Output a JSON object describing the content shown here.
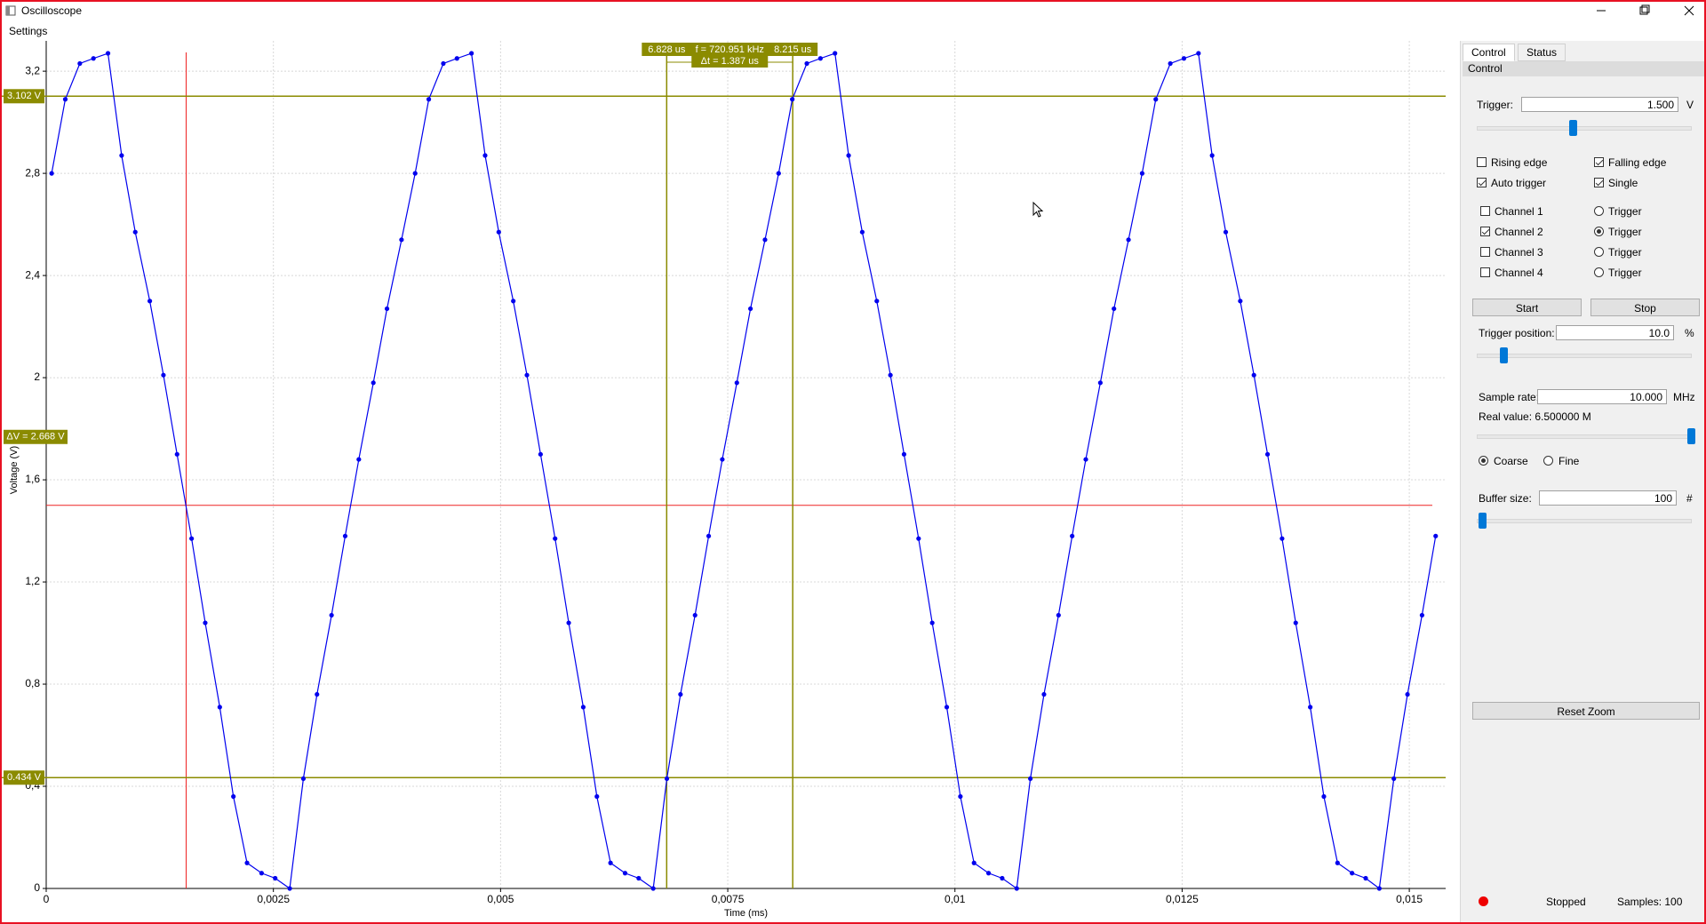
{
  "window": {
    "title": "Oscilloscope"
  },
  "menu": [
    "Settings"
  ],
  "chart_data": {
    "type": "line",
    "x_label": "Time (ms)",
    "y_label": "Voltage (V)",
    "x": [
      6e-05,
      0.00021,
      0.00037,
      0.00052,
      0.00068,
      0.00083,
      0.00098,
      0.00114,
      0.00129,
      0.00144,
      0.0016,
      0.00175,
      0.00191,
      0.00206,
      0.00221,
      0.00237,
      0.00252,
      0.00268,
      0.00283,
      0.00298,
      0.00314,
      0.00329,
      0.00344,
      0.0036,
      0.00375,
      0.00391,
      0.00406,
      0.00421,
      0.00437,
      0.00452,
      0.00468,
      0.00483,
      0.00498,
      0.00514,
      0.00529,
      0.00544,
      0.0056,
      0.00575,
      0.00591,
      0.00606,
      0.00621,
      0.00637,
      0.00652,
      0.00668,
      0.00683,
      0.00698,
      0.00714,
      0.00729,
      0.00744,
      0.0076,
      0.00775,
      0.00791,
      0.00806,
      0.00821,
      0.00837,
      0.00852,
      0.00868,
      0.00883,
      0.00898,
      0.00914,
      0.00929,
      0.00944,
      0.0096,
      0.00975,
      0.00991,
      0.01006,
      0.01021,
      0.01037,
      0.01052,
      0.01068,
      0.01083,
      0.01098,
      0.01114,
      0.01129,
      0.01144,
      0.0116,
      0.01175,
      0.01191,
      0.01206,
      0.01221,
      0.01237,
      0.01252,
      0.01268,
      0.01283,
      0.01298,
      0.01314,
      0.01329,
      0.01344,
      0.0136,
      0.01375,
      0.01391,
      0.01406,
      0.01421,
      0.01437,
      0.01452,
      0.01467,
      0.01483,
      0.01498,
      0.01514,
      0.01529
    ],
    "series": [
      {
        "color": "#0000ee",
        "values": [
          2.8,
          3.09,
          3.23,
          3.25,
          3.27,
          2.87,
          2.57,
          2.3,
          2.01,
          1.7,
          1.37,
          1.04,
          0.71,
          0.36,
          0.1,
          0.06,
          0.04,
          0.0,
          0.43,
          0.76,
          1.07,
          1.38,
          1.68,
          1.98,
          2.27,
          2.54,
          2.8,
          3.09,
          3.23,
          3.25,
          3.27,
          2.87,
          2.57,
          2.3,
          2.01,
          1.7,
          1.37,
          1.04,
          0.71,
          0.36,
          0.1,
          0.06,
          0.04,
          0.0,
          0.43,
          0.76,
          1.07,
          1.38,
          1.68,
          1.98,
          2.27,
          2.54,
          2.8,
          3.09,
          3.23,
          3.25,
          3.27,
          2.87,
          2.57,
          2.3,
          2.01,
          1.7,
          1.37,
          1.04,
          0.71,
          0.36,
          0.1,
          0.06,
          0.04,
          0.0,
          0.43,
          0.76,
          1.07,
          1.38,
          1.68,
          1.98,
          2.27,
          2.54,
          2.8,
          3.09,
          3.23,
          3.25,
          3.27,
          2.87,
          2.57,
          2.3,
          2.01,
          1.7,
          1.37,
          1.04,
          0.71,
          0.36,
          0.1,
          0.06,
          0.04,
          0.0,
          0.43,
          0.76,
          1.07,
          1.38
        ]
      }
    ],
    "xlim": [
      0,
      0.0154
    ],
    "ylim": [
      0,
      3.27
    ],
    "xticks": [
      0,
      {
        "value": 0.0025,
        "label": "0,0025"
      },
      {
        "value": 0.005,
        "label": "0,005"
      },
      {
        "value": 0.0075,
        "label": "0,0075"
      },
      {
        "value": 0.01,
        "label": "0,01"
      },
      {
        "value": 0.0125,
        "label": "0,0125"
      },
      {
        "value": 0.015,
        "label": "0,015"
      }
    ],
    "yticks": [
      0,
      {
        "value": 0.4,
        "label": "0,4"
      },
      {
        "value": 0.8,
        "label": "0,8"
      },
      {
        "value": 1.2,
        "label": "1,2"
      },
      {
        "value": 1.6,
        "label": "1,6"
      },
      2,
      {
        "value": 2.4,
        "label": "2,4"
      },
      {
        "value": 2.8,
        "label": "2,8"
      },
      {
        "value": 3.2,
        "label": "3,2"
      }
    ],
    "grid": true,
    "trigger": {
      "time": 0.00154,
      "level": 1.5,
      "color": "#ee2222"
    },
    "cursors": {
      "color": "#8b8b00",
      "v1": {
        "value": 3.102,
        "label": "3.102 V"
      },
      "v2": {
        "value": 0.434,
        "label": "0.434 V"
      },
      "dv_label": "ΔV = 2.668 V",
      "t1": {
        "value": 0.006828,
        "label": "6.828 us"
      },
      "t2": {
        "value": 0.008215,
        "label": "8.215 us"
      },
      "freq_label": "f = 720.951 kHz",
      "dt_label": "Δt = 1.387 us"
    }
  },
  "panel": {
    "tabs": [
      "Control",
      "Status"
    ],
    "header": "Control",
    "trigger": {
      "label": "Trigger:",
      "value": "1.500",
      "unit": "V"
    },
    "options": [
      {
        "label": "Rising edge",
        "checked": false
      },
      {
        "label": "Falling edge",
        "checked": true
      },
      {
        "label": "Auto trigger",
        "checked": true
      },
      {
        "label": "Single",
        "checked": true
      }
    ],
    "channels": [
      {
        "label": "Channel 1",
        "checked": false,
        "trigger_label": "Trigger",
        "trigger_selected": false
      },
      {
        "label": "Channel 2",
        "checked": true,
        "trigger_label": "Trigger",
        "trigger_selected": true
      },
      {
        "label": "Channel 3",
        "checked": false,
        "trigger_label": "Trigger",
        "trigger_selected": false
      },
      {
        "label": "Channel 4",
        "checked": false,
        "trigger_label": "Trigger",
        "trigger_selected": false
      }
    ],
    "buttons": {
      "start": "Start",
      "stop": "Stop"
    },
    "trigger_position": {
      "label": "Trigger position:",
      "value": "10.0",
      "unit": "%"
    },
    "sample_rate": {
      "label": "Sample rate:",
      "value": "10.000",
      "unit": "MHz",
      "real_value": "Real value: 6.500000 M"
    },
    "resolution": [
      {
        "label": "Coarse",
        "selected": true
      },
      {
        "label": "Fine",
        "selected": false
      }
    ],
    "buffer_size": {
      "label": "Buffer size:",
      "value": "100",
      "unit": "#"
    },
    "reset_zoom": "Reset Zoom"
  },
  "status": {
    "state": "Stopped",
    "samples": "Samples: 100"
  }
}
